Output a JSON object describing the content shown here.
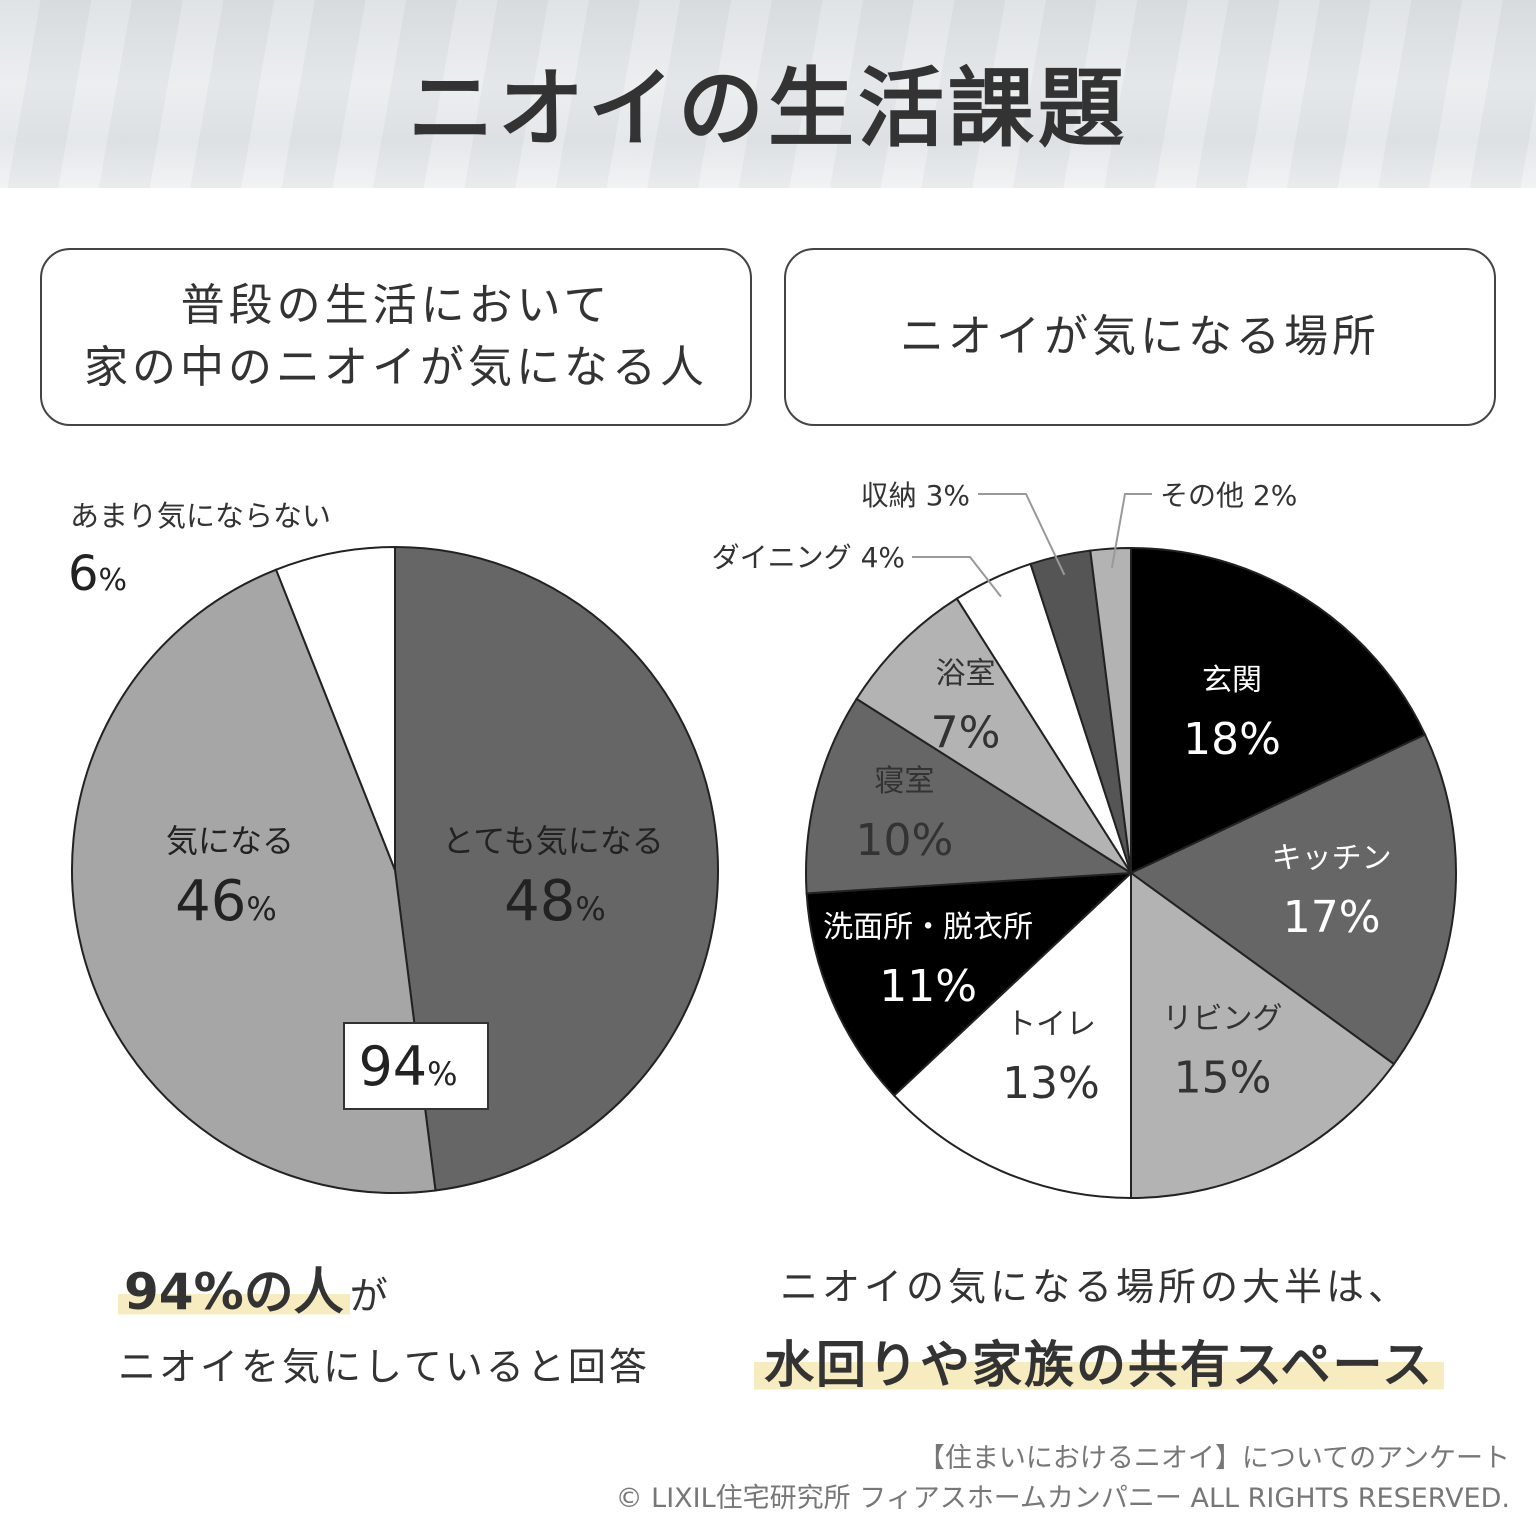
{
  "title": "ニオイの生活課題",
  "left_box": {
    "line1": "普段の生活において",
    "line2": "家の中のニオイが気になる人"
  },
  "right_box": {
    "line1": "ニオイが気になる場所"
  },
  "chart_data": [
    {
      "type": "pie",
      "slices": [
        {
          "label": "とても気になる",
          "value": 48,
          "value_text": "48",
          "color": "#666666"
        },
        {
          "label": "気になる",
          "value": 46,
          "value_text": "46",
          "color": "#a6a6a6"
        },
        {
          "label": "あまり気にならない",
          "value": 6,
          "value_text": "6",
          "color": "#ffffff"
        }
      ],
      "callout": {
        "number": "94",
        "unit": "%"
      },
      "unit": "%"
    },
    {
      "type": "pie",
      "slices": [
        {
          "label": "玄関",
          "value": 18,
          "value_text": "18%",
          "color": "#000000",
          "text_color": "#ffffff"
        },
        {
          "label": "キッチン",
          "value": 17,
          "value_text": "17%",
          "color": "#666666",
          "text_color": "#ffffff"
        },
        {
          "label": "リビング",
          "value": 15,
          "value_text": "15%",
          "color": "#b3b3b3",
          "text_color": "#333333"
        },
        {
          "label": "トイレ",
          "value": 13,
          "value_text": "13%",
          "color": "#ffffff",
          "text_color": "#333333"
        },
        {
          "label": "洗面所・脱衣所",
          "value": 11,
          "value_text": "11%",
          "color": "#000000",
          "text_color": "#ffffff"
        },
        {
          "label": "寝室",
          "value": 10,
          "value_text": "10%",
          "color": "#666666",
          "text_color": "#333333"
        },
        {
          "label": "浴室",
          "value": 7,
          "value_text": "7%",
          "color": "#b3b3b3",
          "text_color": "#333333"
        },
        {
          "label": "ダイニング 4%",
          "value": 4,
          "color": "#ffffff"
        },
        {
          "label": "収納 3%",
          "value": 3,
          "color": "#555555"
        },
        {
          "label": "その他 2%",
          "value": 2,
          "color": "#b3b3b3"
        }
      ]
    }
  ],
  "summary_left": {
    "highlight_number": "94%",
    "highlight_text": "の人",
    "suffix": "が",
    "line2": "ニオイを気にしていると回答"
  },
  "summary_right": {
    "line1": "ニオイの気になる場所の大半は、",
    "line2": "水回りや家族の共有スペース"
  },
  "source": {
    "line1": "【住まいにおけるニオイ】についてのアンケート",
    "line2": "© LIXIL住宅研究所 フィアスホームカンパニー ALL RIGHTS RESERVED."
  }
}
